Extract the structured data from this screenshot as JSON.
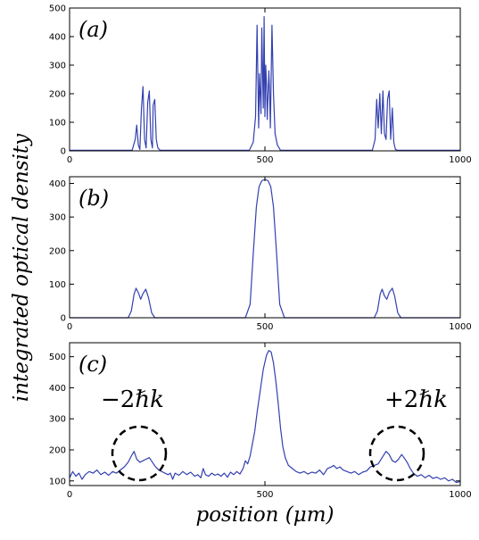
{
  "figure": {
    "ylabel": "integrated optical density",
    "xlabel": "position (μm)"
  },
  "chart_data": [
    {
      "type": "line",
      "panel_label": "(a)",
      "xlim": [
        0,
        1000
      ],
      "ylim": [
        0,
        500
      ],
      "xticks": [
        0,
        500,
        1000
      ],
      "yticks": [
        0,
        100,
        200,
        300,
        400,
        500
      ],
      "series": [
        {
          "color": "#3340b0",
          "points": [
            [
              0,
              2
            ],
            [
              160,
              2
            ],
            [
              168,
              40
            ],
            [
              172,
              90
            ],
            [
              176,
              20
            ],
            [
              180,
              5
            ],
            [
              184,
              150
            ],
            [
              188,
              225
            ],
            [
              192,
              40
            ],
            [
              196,
              10
            ],
            [
              200,
              170
            ],
            [
              204,
              210
            ],
            [
              208,
              40
            ],
            [
              212,
              10
            ],
            [
              214,
              160
            ],
            [
              218,
              180
            ],
            [
              222,
              40
            ],
            [
              226,
              10
            ],
            [
              232,
              2
            ],
            [
              460,
              2
            ],
            [
              470,
              30
            ],
            [
              476,
              120
            ],
            [
              480,
              440
            ],
            [
              484,
              80
            ],
            [
              486,
              270
            ],
            [
              490,
              130
            ],
            [
              492,
              430
            ],
            [
              494,
              280
            ],
            [
              496,
              150
            ],
            [
              498,
              470
            ],
            [
              500,
              120
            ],
            [
              502,
              300
            ],
            [
              504,
              230
            ],
            [
              506,
              110
            ],
            [
              510,
              280
            ],
            [
              512,
              200
            ],
            [
              514,
              80
            ],
            [
              518,
              440
            ],
            [
              522,
              200
            ],
            [
              526,
              60
            ],
            [
              532,
              20
            ],
            [
              540,
              2
            ],
            [
              775,
              2
            ],
            [
              782,
              40
            ],
            [
              786,
              180
            ],
            [
              790,
              80
            ],
            [
              794,
              200
            ],
            [
              798,
              60
            ],
            [
              802,
              210
            ],
            [
              806,
              60
            ],
            [
              810,
              40
            ],
            [
              814,
              180
            ],
            [
              818,
              210
            ],
            [
              822,
              40
            ],
            [
              826,
              150
            ],
            [
              830,
              30
            ],
            [
              834,
              5
            ],
            [
              840,
              2
            ],
            [
              1000,
              2
            ]
          ]
        }
      ]
    },
    {
      "type": "line",
      "panel_label": "(b)",
      "xlim": [
        0,
        1000
      ],
      "ylim": [
        0,
        420
      ],
      "xticks": [
        0,
        500,
        1000
      ],
      "yticks": [
        0,
        100,
        200,
        300,
        400
      ],
      "series": [
        {
          "color": "#3340b0",
          "points": [
            [
              0,
              0
            ],
            [
              150,
              0
            ],
            [
              158,
              20
            ],
            [
              165,
              70
            ],
            [
              170,
              88
            ],
            [
              177,
              72
            ],
            [
              182,
              55
            ],
            [
              188,
              72
            ],
            [
              195,
              85
            ],
            [
              202,
              60
            ],
            [
              210,
              15
            ],
            [
              218,
              0
            ],
            [
              450,
              0
            ],
            [
              462,
              40
            ],
            [
              470,
              190
            ],
            [
              478,
              330
            ],
            [
              485,
              390
            ],
            [
              492,
              408
            ],
            [
              500,
              412
            ],
            [
              508,
              408
            ],
            [
              515,
              390
            ],
            [
              522,
              330
            ],
            [
              530,
              190
            ],
            [
              538,
              40
            ],
            [
              550,
              0
            ],
            [
              780,
              0
            ],
            [
              788,
              20
            ],
            [
              795,
              70
            ],
            [
              800,
              85
            ],
            [
              806,
              65
            ],
            [
              812,
              55
            ],
            [
              818,
              75
            ],
            [
              826,
              88
            ],
            [
              832,
              65
            ],
            [
              840,
              15
            ],
            [
              848,
              0
            ],
            [
              1000,
              0
            ]
          ]
        }
      ]
    },
    {
      "type": "line",
      "panel_label": "(c)",
      "xlim": [
        0,
        1000
      ],
      "ylim": [
        85,
        545
      ],
      "xticks": [
        0,
        500,
        1000
      ],
      "yticks": [
        100,
        200,
        300,
        400,
        500
      ],
      "annotations": [
        {
          "prefix": "−2ℏ",
          "suffix": "k"
        },
        {
          "prefix": "+2ℏ",
          "suffix": "k"
        }
      ],
      "series": [
        {
          "color": "#3340b0",
          "points": [
            [
              0,
              110
            ],
            [
              8,
              130
            ],
            [
              16,
              115
            ],
            [
              24,
              125
            ],
            [
              32,
              105
            ],
            [
              40,
              120
            ],
            [
              50,
              130
            ],
            [
              60,
              125
            ],
            [
              70,
              135
            ],
            [
              80,
              120
            ],
            [
              90,
              128
            ],
            [
              100,
              118
            ],
            [
              110,
              130
            ],
            [
              120,
              125
            ],
            [
              130,
              135
            ],
            [
              140,
              145
            ],
            [
              150,
              160
            ],
            [
              158,
              180
            ],
            [
              165,
              195
            ],
            [
              172,
              170
            ],
            [
              180,
              160
            ],
            [
              188,
              165
            ],
            [
              196,
              170
            ],
            [
              204,
              175
            ],
            [
              212,
              160
            ],
            [
              220,
              145
            ],
            [
              228,
              135
            ],
            [
              236,
              130
            ],
            [
              244,
              125
            ],
            [
              252,
              120
            ],
            [
              258,
              125
            ],
            [
              264,
              105
            ],
            [
              270,
              125
            ],
            [
              280,
              118
            ],
            [
              290,
              130
            ],
            [
              300,
              120
            ],
            [
              310,
              128
            ],
            [
              320,
              115
            ],
            [
              328,
              120
            ],
            [
              336,
              110
            ],
            [
              342,
              140
            ],
            [
              348,
              120
            ],
            [
              356,
              115
            ],
            [
              364,
              125
            ],
            [
              372,
              118
            ],
            [
              380,
              122
            ],
            [
              388,
              115
            ],
            [
              396,
              125
            ],
            [
              404,
              112
            ],
            [
              412,
              128
            ],
            [
              420,
              120
            ],
            [
              428,
              130
            ],
            [
              436,
              122
            ],
            [
              444,
              140
            ],
            [
              450,
              165
            ],
            [
              456,
              155
            ],
            [
              462,
              180
            ],
            [
              468,
              220
            ],
            [
              474,
              260
            ],
            [
              480,
              320
            ],
            [
              488,
              390
            ],
            [
              496,
              460
            ],
            [
              504,
              505
            ],
            [
              510,
              520
            ],
            [
              516,
              515
            ],
            [
              522,
              480
            ],
            [
              528,
              420
            ],
            [
              534,
              350
            ],
            [
              540,
              270
            ],
            [
              546,
              210
            ],
            [
              552,
              175
            ],
            [
              560,
              150
            ],
            [
              570,
              140
            ],
            [
              580,
              130
            ],
            [
              590,
              125
            ],
            [
              600,
              130
            ],
            [
              610,
              122
            ],
            [
              620,
              128
            ],
            [
              630,
              125
            ],
            [
              640,
              135
            ],
            [
              650,
              120
            ],
            [
              660,
              140
            ],
            [
              670,
              145
            ],
            [
              676,
              150
            ],
            [
              684,
              140
            ],
            [
              692,
              145
            ],
            [
              700,
              135
            ],
            [
              710,
              130
            ],
            [
              720,
              125
            ],
            [
              730,
              130
            ],
            [
              740,
              120
            ],
            [
              750,
              128
            ],
            [
              760,
              132
            ],
            [
              770,
              145
            ],
            [
              780,
              150
            ],
            [
              790,
              155
            ],
            [
              800,
              175
            ],
            [
              810,
              195
            ],
            [
              818,
              185
            ],
            [
              826,
              165
            ],
            [
              834,
              160
            ],
            [
              842,
              170
            ],
            [
              850,
              185
            ],
            [
              856,
              175
            ],
            [
              864,
              160
            ],
            [
              872,
              140
            ],
            [
              880,
              125
            ],
            [
              890,
              115
            ],
            [
              900,
              120
            ],
            [
              910,
              110
            ],
            [
              920,
              118
            ],
            [
              930,
              108
            ],
            [
              940,
              112
            ],
            [
              950,
              105
            ],
            [
              960,
              110
            ],
            [
              970,
              100
            ],
            [
              980,
              105
            ],
            [
              990,
              95
            ],
            [
              1000,
              98
            ]
          ]
        }
      ]
    }
  ]
}
